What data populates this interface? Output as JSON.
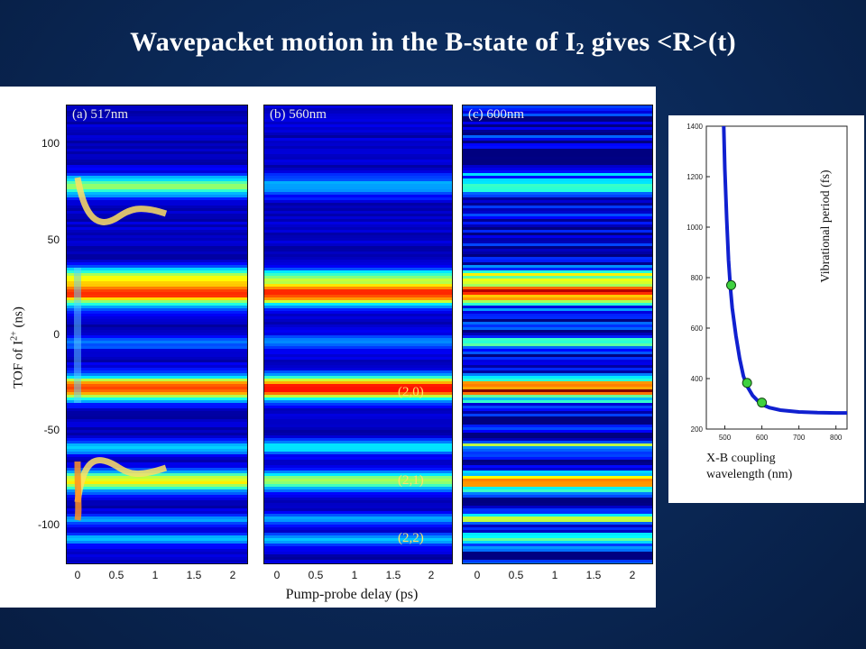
{
  "title": {
    "main": "Wavepacket motion in the B-state of I",
    "subscript": "2",
    "tail": " gives <R>(t)"
  },
  "heatmap_figure": {
    "panels": [
      {
        "label": "(a) 517nm"
      },
      {
        "label": "(b) 560nm"
      },
      {
        "label": "(c) 600nm"
      }
    ],
    "y_axis_label": "TOF of I",
    "y_axis_label_sup": "2+",
    "y_axis_label_tail": " (ns)",
    "y_ticks": [
      "100",
      "50",
      "0",
      "-50",
      "-100"
    ],
    "x_ticks": [
      "0",
      "0.5",
      "1",
      "1.5",
      "2"
    ],
    "x_axis_label": "Pump-probe delay (ps)",
    "band_labels": [
      "(2,0)",
      "(2,1)",
      "(2,2)"
    ]
  },
  "chart_data": {
    "type": "line",
    "title": "",
    "xlabel": "X-B coupling wavelength (nm)",
    "ylabel": "Vibrational period (fs)",
    "xlim": [
      450,
      830
    ],
    "ylim": [
      200,
      1400
    ],
    "x_ticks": [
      500,
      600,
      700,
      800
    ],
    "y_ticks": [
      200,
      400,
      600,
      800,
      1000,
      1200,
      1400
    ],
    "series": [
      {
        "x": [
          497,
          500,
          505,
          510,
          515,
          520,
          530,
          540,
          550,
          560,
          575,
          590,
          600,
          620,
          650,
          700,
          750,
          800,
          830
        ],
        "y": [
          1400,
          1230,
          1030,
          870,
          760,
          680,
          570,
          480,
          410,
          370,
          333,
          310,
          298,
          285,
          275,
          268,
          265,
          264,
          264
        ]
      }
    ],
    "points": [
      {
        "x": 517,
        "y": 770
      },
      {
        "x": 560,
        "y": 383
      },
      {
        "x": 600,
        "y": 305
      }
    ],
    "line_color": "#1020d0",
    "point_color": "#3fd23f",
    "xlabel_line1": "X-B coupling",
    "xlabel_line2": "wavelength (nm)"
  }
}
